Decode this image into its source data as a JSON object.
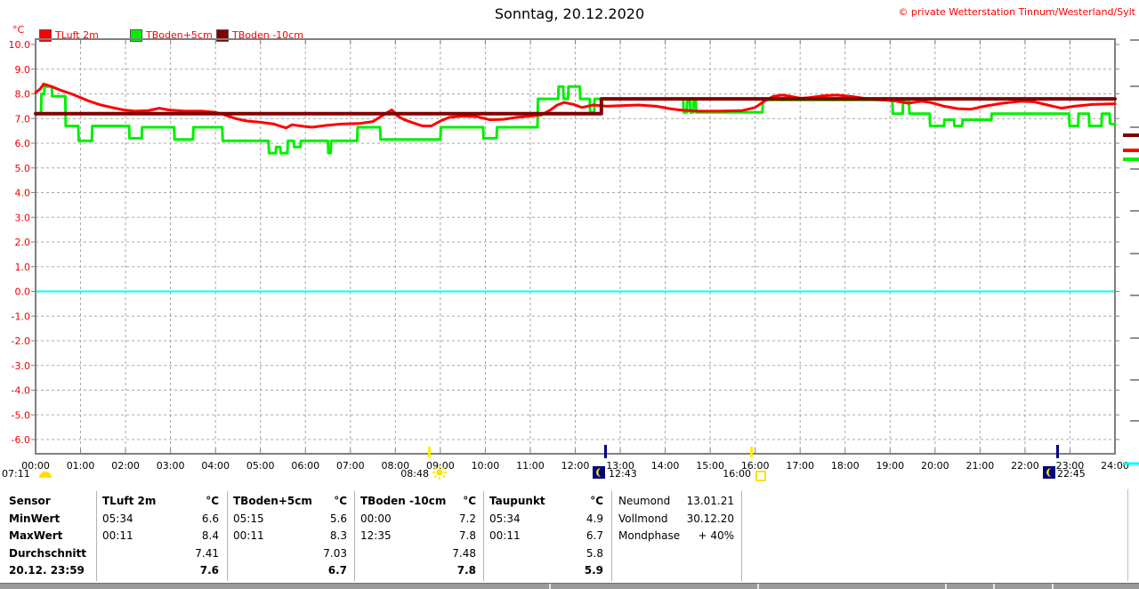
{
  "title": "Sonntag, 20.12.2020",
  "copyright": "© private Wetterstation Tinnum/Westerland/Sylt",
  "axis_unit": "°C",
  "legend": {
    "items": [
      {
        "label": "TLuft 2m",
        "color": "#ff0000"
      },
      {
        "label": "TBoden+5cm",
        "color": "#00f000"
      },
      {
        "label": "TBoden -10cm",
        "color": "#800000"
      }
    ]
  },
  "chart_data": {
    "type": "line",
    "title": "Sonntag, 20.12.2020",
    "xlabel": "time",
    "ylabel": "°C",
    "x_range_hours": [
      0,
      24
    ],
    "ylim": [
      -6,
      10
    ],
    "grid": true,
    "legend_position": "top-left",
    "x_tick_labels": [
      "00:00",
      "01:00",
      "02:00",
      "03:00",
      "04:00",
      "05:00",
      "06:00",
      "07:00",
      "08:00",
      "09:00",
      "10:00",
      "11:00",
      "12:00",
      "13:00",
      "14:00",
      "15:00",
      "16:00",
      "17:00",
      "18:00",
      "19:00",
      "20:00",
      "21:00",
      "22:00",
      "23:00",
      "24:00"
    ],
    "y_tick_labels": [
      "10.0",
      "9.0",
      "8.0",
      "7.0",
      "6.0",
      "5.0",
      "4.0",
      "3.0",
      "2.0",
      "1.0",
      "0.0",
      "-1.0",
      "-2.0",
      "-3.0",
      "-4.0",
      "-5.0",
      "-6.0"
    ],
    "reference_lines": [
      {
        "value": 0,
        "color": "#00ffff"
      }
    ],
    "series": [
      {
        "name": "TLuft 2m",
        "color": "#ff0000",
        "width": 3,
        "points": [
          [
            0,
            8.05
          ],
          [
            0.1,
            8.2
          ],
          [
            0.18,
            8.4
          ],
          [
            0.35,
            8.3
          ],
          [
            0.55,
            8.15
          ],
          [
            0.8,
            8.0
          ],
          [
            1.0,
            7.85
          ],
          [
            1.2,
            7.7
          ],
          [
            1.45,
            7.55
          ],
          [
            1.7,
            7.45
          ],
          [
            1.95,
            7.35
          ],
          [
            2.2,
            7.3
          ],
          [
            2.5,
            7.32
          ],
          [
            2.75,
            7.42
          ],
          [
            2.95,
            7.35
          ],
          [
            3.3,
            7.3
          ],
          [
            3.7,
            7.3
          ],
          [
            4.0,
            7.25
          ],
          [
            4.2,
            7.15
          ],
          [
            4.45,
            7.0
          ],
          [
            4.7,
            6.9
          ],
          [
            5.0,
            6.85
          ],
          [
            5.3,
            6.78
          ],
          [
            5.57,
            6.62
          ],
          [
            5.7,
            6.75
          ],
          [
            5.9,
            6.7
          ],
          [
            6.15,
            6.65
          ],
          [
            6.45,
            6.72
          ],
          [
            6.8,
            6.78
          ],
          [
            7.2,
            6.8
          ],
          [
            7.5,
            6.88
          ],
          [
            7.8,
            7.22
          ],
          [
            7.92,
            7.35
          ],
          [
            8.05,
            7.1
          ],
          [
            8.2,
            6.95
          ],
          [
            8.4,
            6.82
          ],
          [
            8.6,
            6.7
          ],
          [
            8.8,
            6.7
          ],
          [
            9.0,
            6.9
          ],
          [
            9.2,
            7.05
          ],
          [
            9.5,
            7.1
          ],
          [
            9.8,
            7.08
          ],
          [
            10.1,
            6.95
          ],
          [
            10.4,
            6.97
          ],
          [
            10.7,
            7.05
          ],
          [
            11.0,
            7.1
          ],
          [
            11.25,
            7.15
          ],
          [
            11.45,
            7.35
          ],
          [
            11.6,
            7.55
          ],
          [
            11.75,
            7.65
          ],
          [
            11.95,
            7.58
          ],
          [
            12.15,
            7.45
          ],
          [
            12.4,
            7.55
          ],
          [
            12.7,
            7.5
          ],
          [
            13.0,
            7.52
          ],
          [
            13.4,
            7.55
          ],
          [
            13.8,
            7.5
          ],
          [
            14.1,
            7.4
          ],
          [
            14.3,
            7.35
          ],
          [
            14.7,
            7.3
          ],
          [
            15.2,
            7.3
          ],
          [
            15.7,
            7.32
          ],
          [
            16.0,
            7.45
          ],
          [
            16.2,
            7.7
          ],
          [
            16.4,
            7.9
          ],
          [
            16.6,
            7.95
          ],
          [
            16.8,
            7.9
          ],
          [
            17.0,
            7.82
          ],
          [
            17.2,
            7.85
          ],
          [
            17.5,
            7.92
          ],
          [
            17.8,
            7.95
          ],
          [
            18.0,
            7.92
          ],
          [
            18.2,
            7.88
          ],
          [
            18.5,
            7.8
          ],
          [
            18.8,
            7.75
          ],
          [
            19.1,
            7.72
          ],
          [
            19.4,
            7.62
          ],
          [
            19.7,
            7.7
          ],
          [
            19.9,
            7.65
          ],
          [
            20.2,
            7.5
          ],
          [
            20.5,
            7.4
          ],
          [
            20.8,
            7.38
          ],
          [
            21.1,
            7.5
          ],
          [
            21.5,
            7.62
          ],
          [
            21.9,
            7.7
          ],
          [
            22.2,
            7.68
          ],
          [
            22.5,
            7.55
          ],
          [
            22.8,
            7.42
          ],
          [
            23.1,
            7.5
          ],
          [
            23.5,
            7.57
          ],
          [
            24,
            7.6
          ]
        ]
      },
      {
        "name": "TBoden+5cm",
        "color": "#00f000",
        "width": 3,
        "points": [
          [
            0,
            7.2
          ],
          [
            0.12,
            7.2
          ],
          [
            0.13,
            8.0
          ],
          [
            0.19,
            8.0
          ],
          [
            0.2,
            8.3
          ],
          [
            0.36,
            8.3
          ],
          [
            0.37,
            7.9
          ],
          [
            0.66,
            7.9
          ],
          [
            0.67,
            6.7
          ],
          [
            0.95,
            6.7
          ],
          [
            0.96,
            6.1
          ],
          [
            1.25,
            6.1
          ],
          [
            1.26,
            6.7
          ],
          [
            2.08,
            6.7
          ],
          [
            2.09,
            6.2
          ],
          [
            2.36,
            6.2
          ],
          [
            2.37,
            6.65
          ],
          [
            3.08,
            6.65
          ],
          [
            3.09,
            6.15
          ],
          [
            3.5,
            6.15
          ],
          [
            3.51,
            6.65
          ],
          [
            4.15,
            6.65
          ],
          [
            4.16,
            6.1
          ],
          [
            5.18,
            6.1
          ],
          [
            5.19,
            5.6
          ],
          [
            5.34,
            5.6
          ],
          [
            5.35,
            5.85
          ],
          [
            5.44,
            5.85
          ],
          [
            5.45,
            5.6
          ],
          [
            5.6,
            5.6
          ],
          [
            5.61,
            6.1
          ],
          [
            5.74,
            6.1
          ],
          [
            5.75,
            5.85
          ],
          [
            5.89,
            5.85
          ],
          [
            5.9,
            6.1
          ],
          [
            6.5,
            6.1
          ],
          [
            6.51,
            5.6
          ],
          [
            6.56,
            5.6
          ],
          [
            6.57,
            6.1
          ],
          [
            7.15,
            6.1
          ],
          [
            7.16,
            6.65
          ],
          [
            7.66,
            6.65
          ],
          [
            7.67,
            6.15
          ],
          [
            9.0,
            6.15
          ],
          [
            9.01,
            6.65
          ],
          [
            9.95,
            6.65
          ],
          [
            9.96,
            6.2
          ],
          [
            10.25,
            6.2
          ],
          [
            10.26,
            6.65
          ],
          [
            11.16,
            6.65
          ],
          [
            11.17,
            7.8
          ],
          [
            11.62,
            7.8
          ],
          [
            11.63,
            8.3
          ],
          [
            11.73,
            8.3
          ],
          [
            11.74,
            7.8
          ],
          [
            11.84,
            7.8
          ],
          [
            11.85,
            8.3
          ],
          [
            12.1,
            8.3
          ],
          [
            12.11,
            7.8
          ],
          [
            12.32,
            7.8
          ],
          [
            12.33,
            7.25
          ],
          [
            12.42,
            7.25
          ],
          [
            12.43,
            7.8
          ],
          [
            14.4,
            7.8
          ],
          [
            14.41,
            7.25
          ],
          [
            14.48,
            7.25
          ],
          [
            14.49,
            7.7
          ],
          [
            14.55,
            7.7
          ],
          [
            14.56,
            7.25
          ],
          [
            14.62,
            7.25
          ],
          [
            14.63,
            7.7
          ],
          [
            14.68,
            7.7
          ],
          [
            14.69,
            7.25
          ],
          [
            16.16,
            7.25
          ],
          [
            16.17,
            7.75
          ],
          [
            19.05,
            7.75
          ],
          [
            19.06,
            7.2
          ],
          [
            19.28,
            7.2
          ],
          [
            19.29,
            7.75
          ],
          [
            19.42,
            7.75
          ],
          [
            19.43,
            7.2
          ],
          [
            19.88,
            7.2
          ],
          [
            19.89,
            6.7
          ],
          [
            20.2,
            6.7
          ],
          [
            20.21,
            6.95
          ],
          [
            20.42,
            6.95
          ],
          [
            20.43,
            6.7
          ],
          [
            20.6,
            6.7
          ],
          [
            20.61,
            6.95
          ],
          [
            21.25,
            6.95
          ],
          [
            21.26,
            7.2
          ],
          [
            22.98,
            7.2
          ],
          [
            22.99,
            6.7
          ],
          [
            23.18,
            6.7
          ],
          [
            23.19,
            7.2
          ],
          [
            23.42,
            7.2
          ],
          [
            23.43,
            6.7
          ],
          [
            23.7,
            6.7
          ],
          [
            23.71,
            7.2
          ],
          [
            23.88,
            7.2
          ],
          [
            23.89,
            6.8
          ],
          [
            24,
            6.75
          ]
        ]
      },
      {
        "name": "TBoden -10cm",
        "color": "#800000",
        "width": 4,
        "points": [
          [
            0,
            7.2
          ],
          [
            12.58,
            7.2
          ],
          [
            12.58,
            7.8
          ],
          [
            24,
            7.8
          ]
        ]
      }
    ]
  },
  "sun_moon": {
    "items": [
      {
        "time": "07:11",
        "icon": "sun-rise"
      },
      {
        "time": "08:48",
        "icon": "sun"
      },
      {
        "time": "12:43",
        "icon": "moon"
      },
      {
        "time": "16:00",
        "icon": "sun-set"
      },
      {
        "time": "22:45",
        "icon": "moon"
      }
    ]
  },
  "table": {
    "row_labels": [
      "Sensor",
      "MinWert",
      "MaxWert",
      "Durchschnitt",
      "20.12. 23:59"
    ],
    "columns": [
      {
        "name": "TLuft 2m",
        "unit": "°C",
        "min_time": "05:34",
        "min": "6.6",
        "max_time": "00:11",
        "max": "8.4",
        "avg": "7.41",
        "last": "7.6"
      },
      {
        "name": "TBoden+5cm",
        "unit": "°C",
        "min_time": "05:15",
        "min": "5.6",
        "max_time": "00:11",
        "max": "8.3",
        "avg": "7.03",
        "last": "6.7"
      },
      {
        "name": "TBoden -10cm",
        "unit": "°C",
        "min_time": "00:00",
        "min": "7.2",
        "max_time": "12:35",
        "max": "7.8",
        "avg": "7.48",
        "last": "7.8"
      },
      {
        "name": "Taupunkt",
        "unit": "°C",
        "min_time": "05:34",
        "min": "4.9",
        "max_time": "00:11",
        "max": "6.7",
        "avg": "5.8",
        "last": "5.9"
      }
    ]
  },
  "moon": {
    "items": [
      {
        "label": "Neumond",
        "value": "13.01.21"
      },
      {
        "label": "Vollmond",
        "value": "30.12.20"
      },
      {
        "label": "Mondphase",
        "value": "+ 40%"
      }
    ]
  }
}
